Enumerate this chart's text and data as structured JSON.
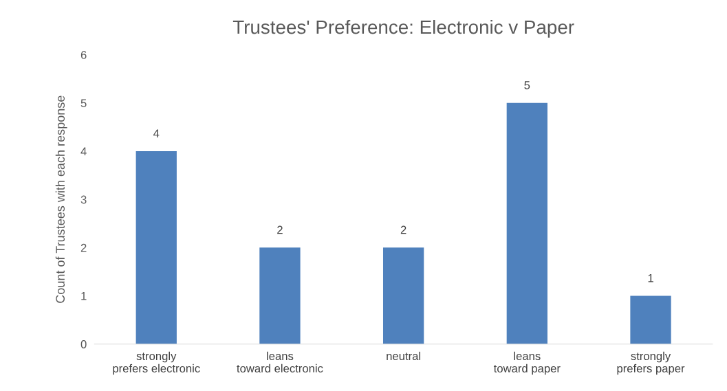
{
  "chart_data": {
    "type": "bar",
    "title": "Trustees' Preference: Electronic v Paper",
    "ylabel": "Count of Trustees with each response",
    "categories": [
      "strongly prefers electronic",
      "leans toward electronic",
      "neutral",
      "leans toward paper",
      "strongly prefers paper"
    ],
    "values": [
      4,
      2,
      2,
      5,
      1
    ],
    "color": "#4f81bd",
    "ylim": [
      0,
      6
    ],
    "yticks": [
      0,
      1,
      2,
      3,
      4,
      5,
      6
    ],
    "grid": false,
    "data_labels": true
  }
}
